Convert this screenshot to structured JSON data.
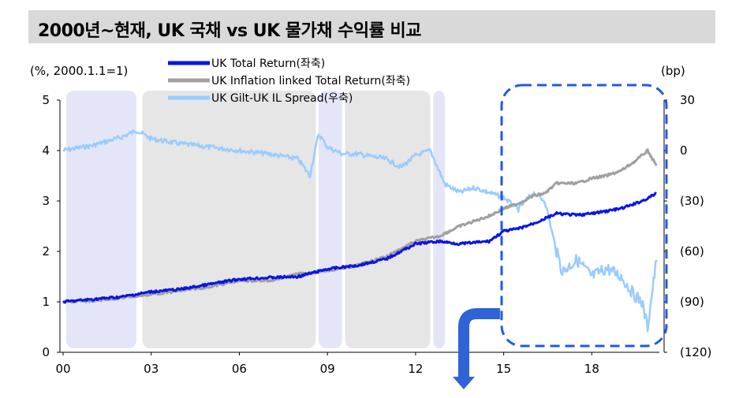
{
  "header": {
    "title": "2000년~현재, UK 국채 vs UK 물가채 수익률 비교"
  },
  "chart_data": {
    "type": "line",
    "left_unit": "(%, 2000.1.1=1)",
    "right_unit": "(bp)",
    "x_ticks": [
      "00",
      "03",
      "06",
      "09",
      "12",
      "15",
      "18"
    ],
    "x_tick_years": [
      2000,
      2003,
      2006,
      2009,
      2012,
      2015,
      2018
    ],
    "x_range": [
      2000,
      2020.3
    ],
    "left_ticks": [
      "5",
      "4",
      "3",
      "2",
      "1",
      "0"
    ],
    "left_ylim": [
      0,
      5
    ],
    "right_ticks": [
      "30",
      "0",
      "(30)",
      "(60)",
      "(90)",
      "(120)"
    ],
    "right_ylim": [
      -120,
      30
    ],
    "grid": false,
    "legend_position": "top-center",
    "shaded_periods": [
      {
        "start": 2000.1,
        "end": 2002.5,
        "color": "#e4e6f7"
      },
      {
        "start": 2002.7,
        "end": 2008.6,
        "color": "#e6e6e6"
      },
      {
        "start": 2008.7,
        "end": 2009.5,
        "color": "#e4e6f7"
      },
      {
        "start": 2009.6,
        "end": 2012.5,
        "color": "#e6e6e6"
      },
      {
        "start": 2012.6,
        "end": 2013.0,
        "color": "#e4e6f7"
      }
    ],
    "series": [
      {
        "name": "UK Total Return(좌축)",
        "axis": "left",
        "color": "#0a14e6",
        "x": [
          2000.0,
          2001.0,
          2002.0,
          2003.0,
          2004.0,
          2005.0,
          2006.0,
          2007.0,
          2008.0,
          2009.0,
          2010.0,
          2011.0,
          2012.0,
          2012.8,
          2013.5,
          2014.5,
          2015.0,
          2015.5,
          2016.0,
          2016.4,
          2016.8,
          2017.5,
          2018.0,
          2018.5,
          2019.0,
          2019.5,
          2019.9,
          2020.2
        ],
        "values": [
          1.0,
          1.05,
          1.1,
          1.2,
          1.25,
          1.35,
          1.45,
          1.48,
          1.5,
          1.65,
          1.72,
          1.85,
          2.15,
          2.2,
          2.15,
          2.2,
          2.4,
          2.45,
          2.55,
          2.65,
          2.75,
          2.72,
          2.75,
          2.8,
          2.85,
          2.95,
          3.05,
          3.15
        ]
      },
      {
        "name": "UK Inflation  linked Total Return(좌축)",
        "axis": "left",
        "color": "#a0a0a0",
        "x": [
          2000.0,
          2001.0,
          2002.0,
          2003.0,
          2004.0,
          2005.0,
          2006.0,
          2007.0,
          2008.0,
          2009.0,
          2010.0,
          2011.0,
          2012.0,
          2012.8,
          2013.5,
          2014.5,
          2015.0,
          2015.5,
          2016.0,
          2016.4,
          2016.8,
          2017.5,
          2018.0,
          2018.5,
          2019.0,
          2019.5,
          2019.9,
          2020.2
        ],
        "values": [
          1.0,
          1.02,
          1.08,
          1.15,
          1.22,
          1.3,
          1.42,
          1.42,
          1.55,
          1.62,
          1.72,
          1.9,
          2.2,
          2.3,
          2.5,
          2.7,
          2.85,
          2.95,
          3.1,
          3.15,
          3.35,
          3.35,
          3.45,
          3.5,
          3.6,
          3.8,
          4.0,
          3.7
        ]
      },
      {
        "name": "UK Gilt-UK  IL Spread(우축)",
        "axis": "right",
        "color": "#99ccff",
        "x": [
          2000.0,
          2001.0,
          2002.0,
          2002.5,
          2003.0,
          2004.0,
          2005.0,
          2006.0,
          2007.0,
          2008.0,
          2008.4,
          2008.7,
          2009.0,
          2009.5,
          2010.0,
          2011.0,
          2011.5,
          2012.0,
          2012.5,
          2013.0,
          2013.5,
          2014.0,
          2014.5,
          2015.0,
          2015.5,
          2016.0,
          2016.4,
          2016.8,
          2017.0,
          2017.5,
          2018.0,
          2018.5,
          2019.0,
          2019.4,
          2019.7,
          2019.9,
          2020.2
        ],
        "values": [
          0,
          3,
          8,
          12,
          7,
          4,
          2,
          0,
          -2,
          -5,
          -15,
          10,
          2,
          -2,
          -2,
          -5,
          -10,
          -3,
          0,
          -20,
          -25,
          -22,
          -25,
          -28,
          -35,
          -25,
          -30,
          -60,
          -72,
          -65,
          -75,
          -70,
          -75,
          -85,
          -90,
          -105,
          -65
        ]
      }
    ]
  }
}
